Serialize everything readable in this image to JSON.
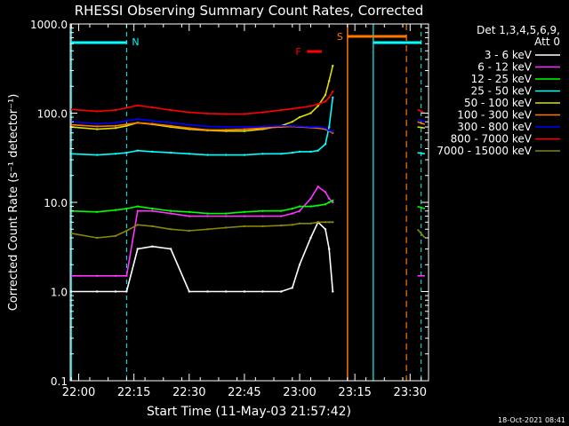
{
  "chart_data": {
    "type": "line",
    "title": "RHESSI Observing Summary Count Rates, Corrected",
    "xlabel": "Start Time (11-May-03 21:57:42)",
    "ylabel": "Corrected Count Rate (s⁻¹ detector⁻¹)",
    "y_scale": "log",
    "ylim": [
      0.1,
      1000.0
    ],
    "y_ticks": [
      "0.1",
      "1.0",
      "10.0",
      "100.0",
      "1000.0"
    ],
    "y_tick_values": [
      0.1,
      1.0,
      10.0,
      100.0,
      1000.0
    ],
    "xlim": [
      "21:57:42",
      "23:35:00"
    ],
    "x_ticks": [
      "22:00",
      "22:15",
      "22:30",
      "22:45",
      "23:00",
      "23:15",
      "23:30"
    ],
    "legend_header": [
      "Det 1,3,4,5,6,9,",
      "Att 0"
    ],
    "legend_position": "right",
    "series": [
      {
        "name": "3 - 6 keV",
        "color": "#ffffff",
        "x": [
          "21:58",
          "22:05",
          "22:10",
          "22:13",
          "22:16",
          "22:20",
          "22:25",
          "22:30",
          "22:35",
          "22:40",
          "22:45",
          "22:50",
          "22:55",
          "22:58",
          "23:00",
          "23:03",
          "23:05",
          "23:07",
          "23:08",
          "23:09"
        ],
        "y": [
          1.0,
          1.0,
          1.0,
          1.0,
          3.0,
          3.2,
          3.0,
          1.0,
          1.0,
          1.0,
          1.0,
          1.0,
          1.0,
          1.1,
          2.0,
          4.0,
          6.0,
          5.0,
          3.0,
          1.0
        ]
      },
      {
        "name": "6 - 12 keV",
        "color": "#ff33ff",
        "x": [
          "21:58",
          "22:05",
          "22:10",
          "22:13",
          "22:16",
          "22:20",
          "22:25",
          "22:30",
          "22:35",
          "22:40",
          "22:45",
          "22:50",
          "22:55",
          "22:58",
          "23:00",
          "23:03",
          "23:05",
          "23:07",
          "23:08",
          "23:09"
        ],
        "y": [
          1.5,
          1.5,
          1.5,
          1.5,
          8.0,
          8.0,
          7.5,
          7.0,
          7.0,
          7.0,
          7.0,
          7.0,
          7.0,
          7.5,
          8.0,
          11.0,
          15.0,
          13.0,
          11.0,
          10.0
        ]
      },
      {
        "name": "12 - 25 keV",
        "color": "#00ff00",
        "x": [
          "21:58",
          "22:05",
          "22:10",
          "22:13",
          "22:16",
          "22:20",
          "22:25",
          "22:30",
          "22:35",
          "22:40",
          "22:45",
          "22:50",
          "22:55",
          "22:58",
          "23:00",
          "23:03",
          "23:05",
          "23:07",
          "23:08",
          "23:09"
        ],
        "y": [
          8.0,
          7.8,
          8.2,
          8.5,
          9.0,
          8.5,
          8.0,
          7.8,
          7.5,
          7.5,
          7.8,
          8.0,
          8.0,
          8.5,
          9.0,
          9.0,
          9.2,
          9.5,
          10.0,
          10.5
        ]
      },
      {
        "name": "25 - 50 keV",
        "color": "#00ffff",
        "x": [
          "21:58",
          "22:05",
          "22:10",
          "22:13",
          "22:16",
          "22:20",
          "22:25",
          "22:30",
          "22:35",
          "22:40",
          "22:45",
          "22:50",
          "22:55",
          "22:58",
          "23:00",
          "23:03",
          "23:05",
          "23:07",
          "23:08",
          "23:09"
        ],
        "y": [
          35,
          34,
          35,
          36,
          38,
          37,
          36,
          35,
          34,
          34,
          34,
          35,
          35,
          36,
          37,
          37,
          38,
          45,
          70,
          150
        ]
      },
      {
        "name": "50 - 100 keV",
        "color": "#dddd00",
        "x": [
          "21:58",
          "22:05",
          "22:10",
          "22:13",
          "22:16",
          "22:20",
          "22:25",
          "22:30",
          "22:35",
          "22:40",
          "22:45",
          "22:50",
          "22:55",
          "22:58",
          "23:00",
          "23:03",
          "23:05",
          "23:07",
          "23:08",
          "23:09"
        ],
        "y": [
          70,
          66,
          68,
          72,
          78,
          75,
          70,
          66,
          64,
          63,
          63,
          66,
          72,
          80,
          90,
          100,
          120,
          160,
          230,
          340
        ]
      },
      {
        "name": "100 - 300 keV",
        "color": "#ff7700",
        "x": [
          "21:58",
          "22:05",
          "22:10",
          "22:13",
          "22:16",
          "22:20",
          "22:25",
          "22:30",
          "22:35",
          "22:40",
          "22:45",
          "22:50",
          "22:55",
          "22:58",
          "23:00",
          "23:03",
          "23:05",
          "23:07",
          "23:08",
          "23:09"
        ],
        "y": [
          74,
          71,
          72,
          75,
          78,
          76,
          72,
          68,
          65,
          65,
          66,
          68,
          70,
          71,
          70,
          69,
          68,
          66,
          63,
          60
        ]
      },
      {
        "name": "300 - 800 keV",
        "color": "#0000ff",
        "x": [
          "21:58",
          "22:05",
          "22:10",
          "22:13",
          "22:16",
          "22:20",
          "22:25",
          "22:30",
          "22:35",
          "22:40",
          "22:45",
          "22:50",
          "22:55",
          "22:58",
          "23:00",
          "23:03",
          "23:05",
          "23:07",
          "23:08",
          "23:09"
        ],
        "y": [
          80,
          76,
          78,
          82,
          86,
          82,
          78,
          74,
          71,
          70,
          70,
          71,
          72,
          72,
          71,
          70,
          70,
          68,
          64,
          62
        ]
      },
      {
        "name": "800 - 7000 keV",
        "color": "#ff0000",
        "x": [
          "21:58",
          "22:05",
          "22:10",
          "22:13",
          "22:16",
          "22:20",
          "22:25",
          "22:30",
          "22:35",
          "22:40",
          "22:45",
          "22:50",
          "22:55",
          "22:58",
          "23:00",
          "23:03",
          "23:05",
          "23:07",
          "23:08",
          "23:09"
        ],
        "y": [
          110,
          105,
          108,
          115,
          122,
          116,
          108,
          102,
          99,
          98,
          98,
          102,
          108,
          112,
          115,
          120,
          126,
          135,
          150,
          175
        ]
      },
      {
        "name": "7000 - 15000 keV",
        "color": "#888800",
        "x": [
          "21:58",
          "22:05",
          "22:10",
          "22:13",
          "22:16",
          "22:20",
          "22:25",
          "22:30",
          "22:35",
          "22:40",
          "22:45",
          "22:50",
          "22:55",
          "22:58",
          "23:00",
          "23:03",
          "23:05",
          "23:07",
          "23:08",
          "23:09"
        ],
        "y": [
          4.5,
          4.0,
          4.2,
          4.8,
          5.6,
          5.4,
          5.0,
          4.8,
          5.0,
          5.2,
          5.4,
          5.4,
          5.5,
          5.6,
          5.8,
          5.8,
          6.0,
          6.0,
          6.0,
          6.0
        ]
      }
    ],
    "series_after_gap": {
      "x": [
        "23:32",
        "23:34"
      ],
      "values": {
        "3 - 6 keV": [
          null,
          null
        ],
        "6 - 12 keV": [
          1.5,
          1.5
        ],
        "12 - 25 keV": [
          9.0,
          8.5
        ],
        "25 - 50 keV": [
          36,
          35
        ],
        "50 - 100 keV": [
          70,
          68
        ],
        "100 - 300 keV": [
          80,
          75
        ],
        "300 - 800 keV": [
          85,
          80
        ],
        "800 - 7000 keV": [
          110,
          100
        ],
        "7000 - 15000 keV": [
          5.0,
          4.0
        ]
      }
    },
    "annotations": [
      {
        "label": "N",
        "kind": "night",
        "color": "#00ffff",
        "spans": [
          [
            "21:58",
            "22:13"
          ],
          [
            "23:20",
            "23:33"
          ]
        ]
      },
      {
        "label": "F",
        "kind": "flare",
        "color": "#ff0000",
        "span": [
          "23:02",
          "23:06"
        ]
      },
      {
        "label": "S",
        "kind": "saa",
        "color": "#ff7700",
        "span": [
          "23:13",
          "23:29"
        ]
      }
    ]
  },
  "footer": {
    "timestamp": "18-Oct-2021 08:41"
  }
}
